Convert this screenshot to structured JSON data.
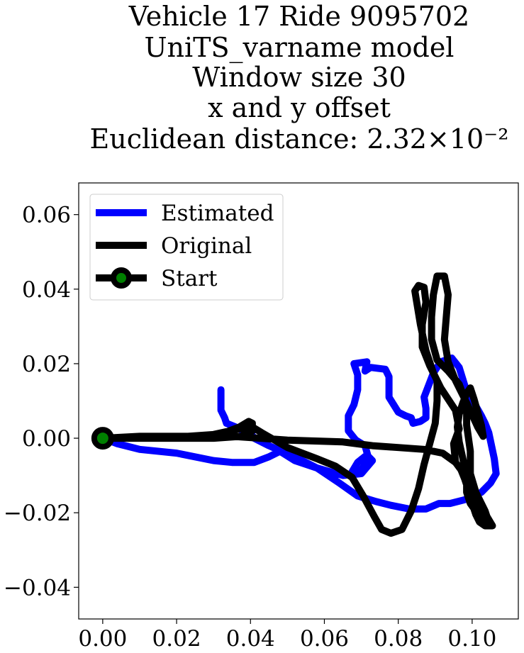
{
  "chart_data": {
    "type": "line",
    "title_lines": [
      "Vehicle 17 Ride 9095702",
      "UniTS_varname model",
      "Window size 30",
      "x and y offset",
      "Euclidean distance: 2.32×10⁻²"
    ],
    "xlabel": "",
    "ylabel": "",
    "xlim": [
      -0.0065,
      0.1125
    ],
    "ylim": [
      -0.0485,
      0.0685
    ],
    "x_ticks": [
      {
        "value": 0.0,
        "label": "0.00"
      },
      {
        "value": 0.02,
        "label": "0.02"
      },
      {
        "value": 0.04,
        "label": "0.04"
      },
      {
        "value": 0.06,
        "label": "0.06"
      },
      {
        "value": 0.08,
        "label": "0.08"
      },
      {
        "value": 0.1,
        "label": "0.10"
      }
    ],
    "y_ticks": [
      {
        "value": -0.04,
        "label": "−0.04"
      },
      {
        "value": -0.02,
        "label": "−0.02"
      },
      {
        "value": 0.0,
        "label": "0.00"
      },
      {
        "value": 0.02,
        "label": "0.02"
      },
      {
        "value": 0.04,
        "label": "0.04"
      },
      {
        "value": 0.06,
        "label": "0.06"
      }
    ],
    "grid": false,
    "legend_position": "top-left",
    "series": [
      {
        "name": "Estimated",
        "color": "#0000ff",
        "points": [
          [
            0.0,
            0.0
          ],
          [
            0.004,
            -0.0015
          ],
          [
            0.01,
            -0.003
          ],
          [
            0.02,
            -0.004
          ],
          [
            0.03,
            -0.006
          ],
          [
            0.035,
            -0.0065
          ],
          [
            0.041,
            -0.0065
          ],
          [
            0.045,
            -0.005
          ],
          [
            0.048,
            -0.0035
          ],
          [
            0.052,
            -0.006
          ],
          [
            0.058,
            -0.008
          ],
          [
            0.065,
            -0.01
          ],
          [
            0.07,
            -0.0095
          ],
          [
            0.073,
            -0.006
          ],
          [
            0.0715,
            -0.0045
          ],
          [
            0.069,
            -0.0065
          ],
          [
            0.0675,
            -0.009
          ],
          [
            0.068,
            -0.01
          ],
          [
            0.07,
            -0.0085
          ],
          [
            0.072,
            -0.0055
          ],
          [
            0.071,
            -0.002
          ],
          [
            0.0685,
            -0.0005
          ],
          [
            0.0665,
            0.002
          ],
          [
            0.0665,
            0.006
          ],
          [
            0.068,
            0.009
          ],
          [
            0.069,
            0.013
          ],
          [
            0.069,
            0.017
          ],
          [
            0.068,
            0.02
          ],
          [
            0.0715,
            0.0205
          ],
          [
            0.071,
            0.018
          ],
          [
            0.0725,
            0.019
          ],
          [
            0.0765,
            0.0185
          ],
          [
            0.0775,
            0.0165
          ],
          [
            0.0775,
            0.011
          ],
          [
            0.08,
            0.007
          ],
          [
            0.082,
            0.006
          ],
          [
            0.0835,
            0.0055
          ],
          [
            0.084,
            0.004
          ],
          [
            0.086,
            0.0045
          ],
          [
            0.0875,
            0.0055
          ],
          [
            0.0875,
            0.008
          ],
          [
            0.087,
            0.011
          ],
          [
            0.0895,
            0.0175
          ],
          [
            0.0915,
            0.0205
          ],
          [
            0.0945,
            0.0215
          ],
          [
            0.0965,
            0.019
          ],
          [
            0.0985,
            0.0125
          ],
          [
            0.1005,
            0.0095
          ],
          [
            0.1025,
            0.006
          ],
          [
            0.1035,
            0.004
          ],
          [
            0.1045,
            0.0015
          ],
          [
            0.106,
            -0.0055
          ],
          [
            0.1065,
            -0.0095
          ],
          [
            0.105,
            -0.012
          ],
          [
            0.1025,
            -0.0145
          ],
          [
            0.098,
            -0.0165
          ],
          [
            0.094,
            -0.0175
          ],
          [
            0.091,
            -0.0175
          ],
          [
            0.0875,
            -0.019
          ],
          [
            0.083,
            -0.019
          ],
          [
            0.078,
            -0.018
          ],
          [
            0.074,
            -0.017
          ],
          [
            0.069,
            -0.0155
          ],
          [
            0.064,
            -0.012
          ],
          [
            0.058,
            -0.008
          ],
          [
            0.053,
            -0.0055
          ],
          [
            0.045,
            -0.002
          ],
          [
            0.041,
            0.0
          ],
          [
            0.04,
            0.0015
          ],
          [
            0.038,
            0.002
          ],
          [
            0.036,
            0.003
          ],
          [
            0.0335,
            0.004
          ],
          [
            0.033,
            0.0055
          ],
          [
            0.032,
            0.0075
          ],
          [
            0.032,
            0.0095
          ],
          [
            0.032,
            0.013
          ]
        ]
      },
      {
        "name": "Original",
        "color": "#000000",
        "points": [
          [
            0.0,
            0.0
          ],
          [
            0.01,
            0.0005
          ],
          [
            0.02,
            0.0005
          ],
          [
            0.027,
            0.0005
          ],
          [
            0.033,
            0.0015
          ],
          [
            0.037,
            0.003
          ],
          [
            0.0395,
            0.0045
          ],
          [
            0.0405,
            0.004
          ],
          [
            0.0405,
            0.002
          ],
          [
            0.0375,
            0.0005
          ],
          [
            0.03,
            0.0
          ],
          [
            0.02,
            0.0
          ],
          [
            0.01,
            0.0
          ],
          [
            0.004,
            0.0
          ],
          [
            0.0,
            0.0
          ],
          [
            0.02,
            0.0
          ],
          [
            0.035,
            0.0005
          ],
          [
            0.05,
            -0.0005
          ],
          [
            0.065,
            -0.001
          ],
          [
            0.073,
            -0.002
          ],
          [
            0.08,
            -0.0025
          ],
          [
            0.087,
            -0.003
          ],
          [
            0.092,
            -0.004
          ],
          [
            0.0955,
            -0.0065
          ],
          [
            0.097,
            -0.0085
          ],
          [
            0.098,
            -0.011
          ],
          [
            0.099,
            -0.014
          ],
          [
            0.1,
            -0.0175
          ],
          [
            0.101,
            -0.0205
          ],
          [
            0.102,
            -0.0225
          ],
          [
            0.1035,
            -0.0235
          ],
          [
            0.1055,
            -0.0235
          ],
          [
            0.104,
            -0.021
          ],
          [
            0.1015,
            -0.018
          ],
          [
            0.1,
            -0.015
          ],
          [
            0.0985,
            -0.0105
          ],
          [
            0.0975,
            -0.0055
          ],
          [
            0.0965,
            -0.001
          ],
          [
            0.096,
            0.003
          ],
          [
            0.0965,
            0.0065
          ],
          [
            0.0975,
            0.0095
          ],
          [
            0.0985,
            0.012
          ],
          [
            0.0995,
            0.0135
          ],
          [
            0.1005,
            0.0105
          ],
          [
            0.1015,
            0.007
          ],
          [
            0.1025,
            0.0035
          ],
          [
            0.103,
            0.0005
          ],
          [
            0.1015,
            0.003
          ],
          [
            0.0985,
            0.0095
          ],
          [
            0.0955,
            0.0155
          ],
          [
            0.0935,
            0.0205
          ],
          [
            0.0925,
            0.0265
          ],
          [
            0.093,
            0.0325
          ],
          [
            0.0935,
            0.0385
          ],
          [
            0.0925,
            0.0435
          ],
          [
            0.0905,
            0.0435
          ],
          [
            0.0895,
            0.0385
          ],
          [
            0.089,
            0.0325
          ],
          [
            0.089,
            0.0265
          ],
          [
            0.0905,
            0.021
          ],
          [
            0.0935,
            0.018
          ],
          [
            0.0965,
            0.0145
          ],
          [
            0.0985,
            0.009
          ],
          [
            0.0985,
            0.0035
          ],
          [
            0.0995,
            -0.0035
          ],
          [
            0.0995,
            -0.0095
          ],
          [
            0.101,
            -0.0145
          ],
          [
            0.1035,
            -0.0195
          ],
          [
            0.1045,
            -0.0225
          ],
          [
            0.1035,
            -0.0235
          ],
          [
            0.102,
            -0.021
          ],
          [
            0.0995,
            -0.0175
          ],
          [
            0.0985,
            -0.0145
          ],
          [
            0.0985,
            -0.0115
          ],
          [
            0.097,
            -0.0085
          ],
          [
            0.0955,
            -0.0065
          ],
          [
            0.095,
            -0.0015
          ],
          [
            0.0965,
            0.0025
          ],
          [
            0.0955,
            0.0075
          ],
          [
            0.0935,
            0.0105
          ],
          [
            0.0915,
            0.0135
          ],
          [
            0.0895,
            0.0175
          ],
          [
            0.0875,
            0.0235
          ],
          [
            0.086,
            0.0305
          ],
          [
            0.085,
            0.0365
          ],
          [
            0.0845,
            0.0395
          ],
          [
            0.0855,
            0.041
          ],
          [
            0.087,
            0.0405
          ],
          [
            0.0875,
            0.0365
          ],
          [
            0.0865,
            0.0305
          ],
          [
            0.0865,
            0.0245
          ],
          [
            0.0885,
            0.0195
          ],
          [
            0.0905,
            0.0155
          ],
          [
            0.0905,
            0.01
          ],
          [
            0.09,
            0.004
          ],
          [
            0.0885,
            -0.0015
          ],
          [
            0.087,
            -0.007
          ],
          [
            0.0855,
            -0.0135
          ],
          [
            0.0835,
            -0.0195
          ],
          [
            0.081,
            -0.0245
          ],
          [
            0.078,
            -0.0255
          ],
          [
            0.0755,
            -0.0245
          ],
          [
            0.0735,
            -0.021
          ],
          [
            0.0705,
            -0.0155
          ],
          [
            0.0675,
            -0.0105
          ],
          [
            0.063,
            -0.0075
          ],
          [
            0.058,
            -0.0055
          ],
          [
            0.05,
            -0.0025
          ],
          [
            0.043,
            0.0015
          ],
          [
            0.0405,
            0.003
          ],
          [
            0.037,
            0.0025
          ],
          [
            0.03,
            0.001
          ],
          [
            0.02,
            0.0003
          ],
          [
            0.01,
            0.0
          ],
          [
            0.0,
            0.0
          ]
        ]
      }
    ],
    "start_marker": {
      "name": "Start",
      "x": 0.0,
      "y": 0.0,
      "fill": "#008000",
      "edge": "#000000"
    }
  }
}
